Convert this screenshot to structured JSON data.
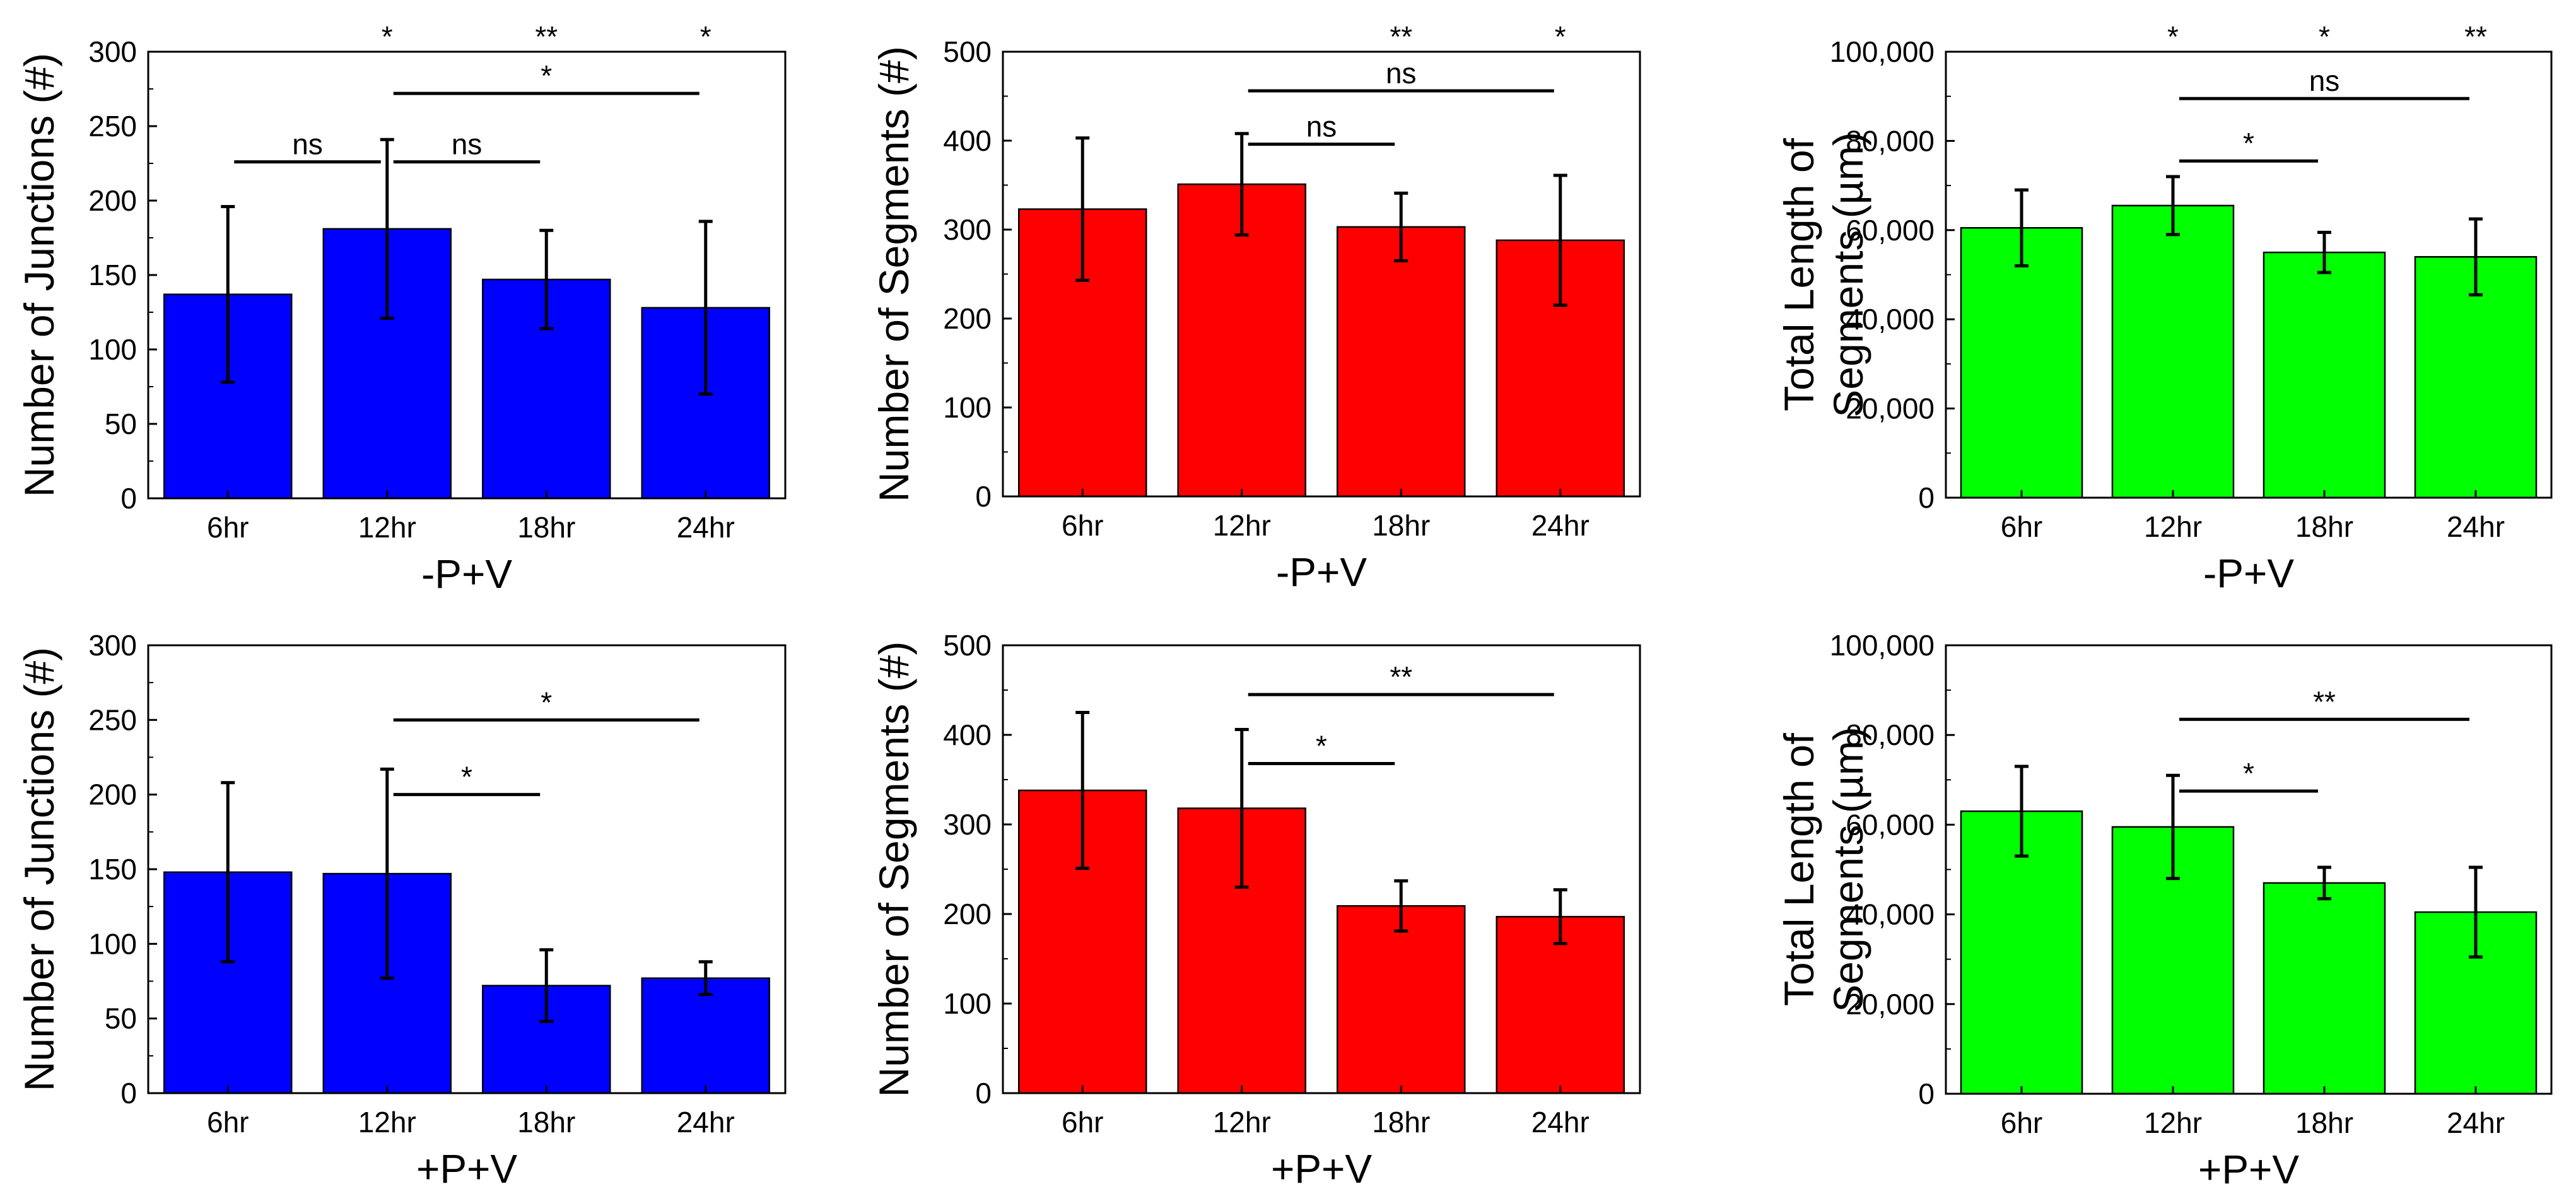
{
  "figure": {
    "title": ""
  },
  "chart_data": [
    {
      "type": "bar",
      "title": "",
      "ylabel": "Number of Junctions (#)",
      "xlabel": "-P+V",
      "categories": [
        "6hr",
        "12hr",
        "18hr",
        "24hr"
      ],
      "values": [
        137,
        181,
        147,
        128
      ],
      "errors": [
        59,
        60,
        33,
        58
      ],
      "ylim": [
        0,
        300
      ],
      "yticks": [
        0,
        50,
        100,
        150,
        200,
        250,
        300
      ],
      "ytick_labels": [
        "0",
        "50",
        "100",
        "150",
        "200",
        "250",
        "300"
      ],
      "bar_color": "#0000ff",
      "stars": [
        {
          "category": "12hr",
          "text": "*"
        },
        {
          "category": "18hr",
          "text": "**"
        },
        {
          "category": "24hr",
          "text": "*"
        }
      ],
      "comparisons": [
        {
          "from": "6hr",
          "to": "12hr",
          "y": 226,
          "text": "ns"
        },
        {
          "from": "12hr",
          "to": "18hr",
          "y": 226,
          "text": "ns"
        },
        {
          "from": "12hr",
          "to": "24hr",
          "y": 272,
          "text": "*"
        }
      ]
    },
    {
      "type": "bar",
      "title": "",
      "ylabel": "Number of Segments (#)",
      "xlabel": "-P+V",
      "categories": [
        "6hr",
        "12hr",
        "18hr",
        "24hr"
      ],
      "values": [
        323,
        351,
        303,
        288
      ],
      "errors": [
        80,
        57,
        38,
        73
      ],
      "ylim": [
        0,
        500
      ],
      "yticks": [
        0,
        100,
        200,
        300,
        400,
        500
      ],
      "ytick_labels": [
        "0",
        "100",
        "200",
        "300",
        "400",
        "500"
      ],
      "bar_color": "#ff0000",
      "stars": [
        {
          "category": "18hr",
          "text": "**"
        },
        {
          "category": "24hr",
          "text": "*"
        }
      ],
      "comparisons": [
        {
          "from": "12hr",
          "to": "18hr",
          "y": 396,
          "text": "ns"
        },
        {
          "from": "12hr",
          "to": "24hr",
          "y": 456,
          "text": "ns"
        }
      ]
    },
    {
      "type": "bar",
      "title": "",
      "ylabel": "Total Length of Segments (µm)",
      "ylabel_lines": [
        "Total Length of",
        "Segments (µm)"
      ],
      "xlabel": "-P+V",
      "categories": [
        "6hr",
        "12hr",
        "18hr",
        "24hr"
      ],
      "values": [
        60500,
        65500,
        55000,
        54000
      ],
      "errors": [
        8500,
        6500,
        4500,
        8500
      ],
      "ylim": [
        0,
        100000
      ],
      "yticks": [
        0,
        20000,
        40000,
        60000,
        80000,
        100000
      ],
      "ytick_labels": [
        "0",
        "20,000",
        "40,000",
        "60,000",
        "80,000",
        "100,000"
      ],
      "bar_color": "#00ff00",
      "stars": [
        {
          "category": "12hr",
          "text": "*"
        },
        {
          "category": "18hr",
          "text": "*"
        },
        {
          "category": "24hr",
          "text": "**"
        }
      ],
      "comparisons": [
        {
          "from": "12hr",
          "to": "18hr",
          "y": 75500,
          "text": "*"
        },
        {
          "from": "12hr",
          "to": "24hr",
          "y": 89500,
          "text": "ns"
        }
      ]
    },
    {
      "type": "bar",
      "title": "",
      "ylabel": "Number of Junctions (#)",
      "xlabel": "+P+V",
      "categories": [
        "6hr",
        "12hr",
        "18hr",
        "24hr"
      ],
      "values": [
        148,
        147,
        72,
        77
      ],
      "errors": [
        60,
        70,
        24,
        11
      ],
      "ylim": [
        0,
        300
      ],
      "yticks": [
        0,
        50,
        100,
        150,
        200,
        250,
        300
      ],
      "ytick_labels": [
        "0",
        "50",
        "100",
        "150",
        "200",
        "250",
        "300"
      ],
      "bar_color": "#0000ff",
      "stars": [],
      "comparisons": [
        {
          "from": "12hr",
          "to": "18hr",
          "y": 200,
          "text": "*"
        },
        {
          "from": "12hr",
          "to": "24hr",
          "y": 250,
          "text": "*"
        }
      ]
    },
    {
      "type": "bar",
      "title": "",
      "ylabel": "Number of Segments (#)",
      "xlabel": "+P+V",
      "categories": [
        "6hr",
        "12hr",
        "18hr",
        "24hr"
      ],
      "values": [
        338,
        318,
        209,
        197
      ],
      "errors": [
        87,
        88,
        28,
        30
      ],
      "ylim": [
        0,
        500
      ],
      "yticks": [
        0,
        100,
        200,
        300,
        400,
        500
      ],
      "ytick_labels": [
        "0",
        "100",
        "200",
        "300",
        "400",
        "500"
      ],
      "bar_color": "#ff0000",
      "stars": [],
      "comparisons": [
        {
          "from": "12hr",
          "to": "18hr",
          "y": 368,
          "text": "*"
        },
        {
          "from": "12hr",
          "to": "24hr",
          "y": 445,
          "text": "**"
        }
      ]
    },
    {
      "type": "bar",
      "title": "",
      "ylabel": "Total Length of Segments (µm)",
      "ylabel_lines": [
        "Total Length of",
        "Segments (µm)"
      ],
      "xlabel": "+P+V",
      "categories": [
        "6hr",
        "12hr",
        "18hr",
        "24hr"
      ],
      "values": [
        63000,
        59500,
        47000,
        40500
      ],
      "errors": [
        10000,
        11500,
        3500,
        10000
      ],
      "ylim": [
        0,
        100000
      ],
      "yticks": [
        0,
        20000,
        40000,
        60000,
        80000,
        100000
      ],
      "ytick_labels": [
        "0",
        "20,000",
        "40,000",
        "60,000",
        "80,000",
        "100,000"
      ],
      "bar_color": "#00ff00",
      "stars": [],
      "comparisons": [
        {
          "from": "12hr",
          "to": "18hr",
          "y": 67500,
          "text": "*"
        },
        {
          "from": "12hr",
          "to": "24hr",
          "y": 83500,
          "text": "**"
        }
      ]
    }
  ]
}
